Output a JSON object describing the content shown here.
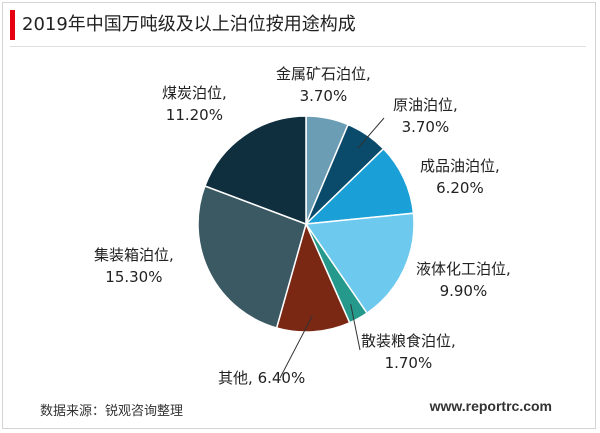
{
  "title": "2019年中国万吨级及以上泊位按用途构成",
  "source": "数据来源：锐观咨询整理",
  "website": "www.reportrc.com",
  "colors": {
    "title_accent": "#e60012"
  },
  "chart_data": {
    "type": "pie",
    "title": "2019年中国万吨级及以上泊位按用途构成",
    "slices": [
      {
        "name": "金属矿石泊位,",
        "label": "3.70%",
        "value": 3.7,
        "color": "#6b9db4"
      },
      {
        "name": "原油泊位,",
        "label": "3.70%",
        "value": 3.7,
        "color": "#0a4a6a"
      },
      {
        "name": "成品油泊位,",
        "label": "6.20%",
        "value": 6.2,
        "color": "#1a9fd6"
      },
      {
        "name": "液体化工泊位,",
        "label": "9.90%",
        "value": 9.9,
        "color": "#6ec9ef"
      },
      {
        "name": "散装粮食泊位,",
        "label": "1.70%",
        "value": 1.7,
        "color": "#259a8c"
      },
      {
        "name": "其他,",
        "label": "6.40%",
        "value": 6.4,
        "color": "#7a2814"
      },
      {
        "name": "集装箱泊位,",
        "label": "15.30%",
        "value": 15.3,
        "color": "#3a5963"
      },
      {
        "name": "煤炭泊位,",
        "label": "11.20%",
        "value": 11.2,
        "color": "#0f2f3f"
      }
    ]
  }
}
